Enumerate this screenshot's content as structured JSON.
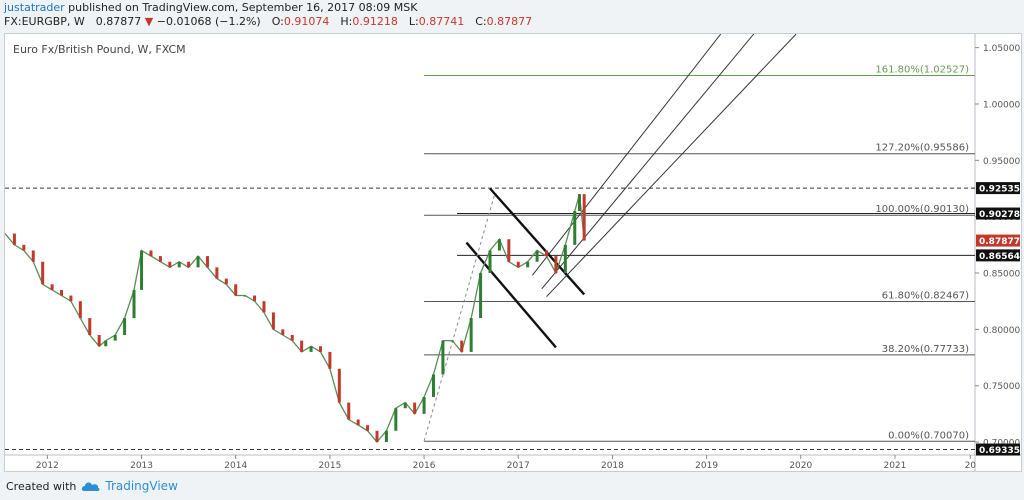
{
  "header": {
    "username": "justatrader",
    "published_text": "published on TradingView.com, September 16, 2017 08:09 MSK",
    "symbol": "FX:EURGBP, W",
    "last": "0.87877",
    "change": "−0.01068 (−1.2%)",
    "o_label": "O:",
    "o": "0.91074",
    "h_label": "H:",
    "h": "0.91218",
    "l_label": "L:",
    "l": "0.87741",
    "c_label": "C:",
    "c": "0.87877"
  },
  "colors": {
    "accent": "#1b74c5",
    "down": "#c0392b",
    "up": "#2e7d32",
    "fib_top": "#6a9a58",
    "brand": "#2a8fd6"
  },
  "chart_data": {
    "type": "line",
    "title": "Euro Fx/British Pound, W, FXCM",
    "xlabel": "",
    "ylabel": "",
    "x_ticks": [
      "2012",
      "2013",
      "2014",
      "2015",
      "2016",
      "2017",
      "2018",
      "2019",
      "2020",
      "2021",
      "20"
    ],
    "y_ticks": [
      "0.70000",
      "0.75000",
      "0.80000",
      "0.85000",
      "0.90000",
      "0.95000",
      "1.00000",
      "1.05000"
    ],
    "ylim": [
      0.6885,
      1.0621
    ],
    "grid": false,
    "x_unit": "years",
    "x_range": [
      2011.55,
      2021.85
    ],
    "series": [
      {
        "values_x": [
          2011.55,
          2011.65,
          2011.75,
          2011.85,
          2011.95,
          2012.05,
          2012.15,
          2012.25,
          2012.35,
          2012.45,
          2012.55,
          2012.62,
          2012.72,
          2012.82,
          2012.92,
          2013.0,
          2013.1,
          2013.2,
          2013.3,
          2013.4,
          2013.5,
          2013.6,
          2013.7,
          2013.8,
          2013.9,
          2014.0,
          2014.1,
          2014.2,
          2014.3,
          2014.4,
          2014.5,
          2014.6,
          2014.7,
          2014.8,
          2014.9,
          2015.0,
          2015.1,
          2015.2,
          2015.3,
          2015.4,
          2015.5,
          2015.6,
          2015.7,
          2015.8,
          2015.9,
          2016.0,
          2016.1,
          2016.2,
          2016.3,
          2016.4,
          2016.5,
          2016.6,
          2016.7,
          2016.8,
          2016.9,
          2017.0,
          2017.1,
          2017.2,
          2017.3,
          2017.4,
          2017.5,
          2017.6,
          2017.65,
          2017.7
        ],
        "values_y": [
          0.885,
          0.875,
          0.87,
          0.86,
          0.84,
          0.835,
          0.83,
          0.825,
          0.81,
          0.795,
          0.785,
          0.79,
          0.795,
          0.81,
          0.835,
          0.87,
          0.865,
          0.86,
          0.855,
          0.86,
          0.855,
          0.865,
          0.855,
          0.845,
          0.84,
          0.83,
          0.83,
          0.825,
          0.815,
          0.8,
          0.795,
          0.79,
          0.78,
          0.785,
          0.78,
          0.765,
          0.735,
          0.72,
          0.715,
          0.71,
          0.7,
          0.71,
          0.73,
          0.735,
          0.725,
          0.74,
          0.76,
          0.79,
          0.79,
          0.78,
          0.81,
          0.85,
          0.87,
          0.88,
          0.86,
          0.855,
          0.86,
          0.87,
          0.865,
          0.85,
          0.875,
          0.905,
          0.92,
          0.87877
        ]
      }
    ],
    "annotations": [
      {
        "label": "161.80%(1.02527)",
        "y": 1.02527
      },
      {
        "label": "127.20%(0.95586)",
        "y": 0.95586
      },
      {
        "label": "100.00%(0.90130)",
        "y": 0.9013
      },
      {
        "label": "61.80%(0.82467)",
        "y": 0.82467
      },
      {
        "label": "38.20%(0.77733)",
        "y": 0.77733
      },
      {
        "label": "0.00%(0.70070)",
        "y": 0.7007
      }
    ],
    "price_labels": [
      {
        "label": "0.92535",
        "y": 0.92535,
        "style": "dark"
      },
      {
        "label": "0.90278",
        "y": 0.90278,
        "style": "dark"
      },
      {
        "label": "0.87877",
        "y": 0.87877,
        "style": "red"
      },
      {
        "label": "0.86564",
        "y": 0.86564,
        "style": "dark"
      },
      {
        "label": "0.69335",
        "y": 0.69335,
        "style": "dark"
      }
    ]
  },
  "footer": {
    "created_with": "Created with",
    "brand": "TradingView"
  }
}
